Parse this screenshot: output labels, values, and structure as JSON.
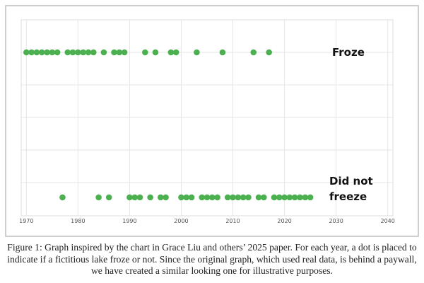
{
  "chart_data": {
    "type": "scatter",
    "series": [
      {
        "name": "Froze",
        "color": "#4caf50",
        "x": [
          1970,
          1971,
          1972,
          1973,
          1974,
          1975,
          1976,
          1978,
          1979,
          1980,
          1981,
          1982,
          1983,
          1985,
          1987,
          1988,
          1989,
          1993,
          1995,
          1998,
          1999,
          2003,
          2008,
          2014,
          2017
        ]
      },
      {
        "name": "Did not freeze",
        "color": "#4caf50",
        "x": [
          1977,
          1984,
          1986,
          1990,
          1991,
          1992,
          1994,
          1996,
          1997,
          2000,
          2001,
          2002,
          2004,
          2005,
          2006,
          2007,
          2009,
          2010,
          2011,
          2012,
          2013,
          2015,
          2016,
          2018,
          2019,
          2020,
          2021,
          2022,
          2023,
          2024,
          2025
        ]
      }
    ],
    "xlim": [
      1969,
      2041
    ],
    "xticks": [
      1970,
      1980,
      1990,
      2000,
      2010,
      2020,
      2030,
      2040
    ],
    "grid": true
  },
  "caption": "Figure 1: Graph inspired by the chart in Grace Liu and others’ 2025 paper. For each year, a dot is placed to indicate if a fictitious lake froze or not. Since the original graph, which used real data, is behind a paywall, we have created a similar looking one for illustrative purposes."
}
